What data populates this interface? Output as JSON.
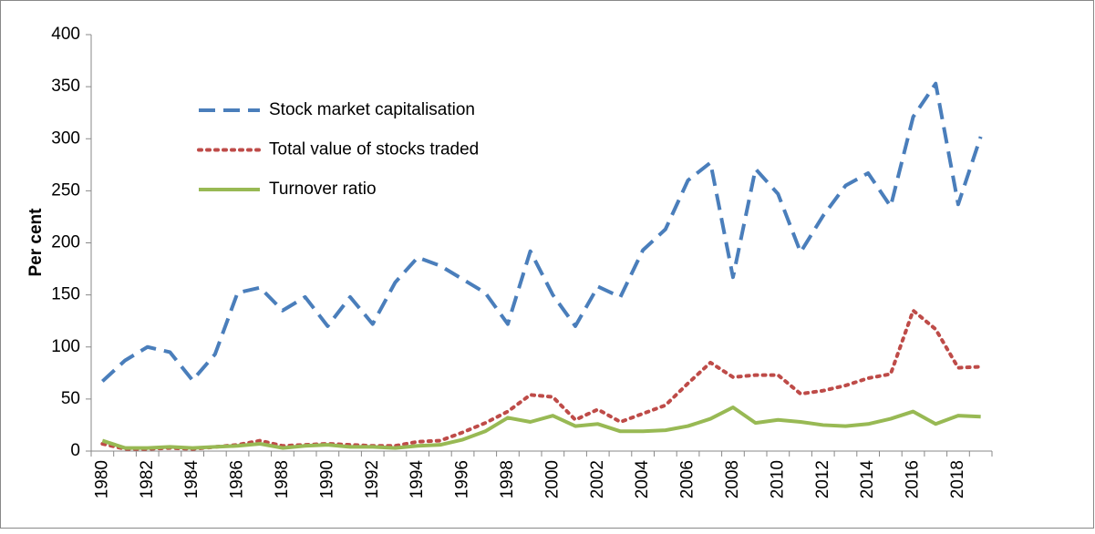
{
  "chart_data": {
    "type": "line",
    "y_label": "Per cent",
    "categories": [
      "1980",
      null,
      "1982",
      null,
      "1984",
      null,
      "1986",
      null,
      "1988",
      null,
      "1990",
      null,
      "1992",
      null,
      "1994",
      null,
      "1996",
      null,
      "1998",
      null,
      "2000",
      null,
      "2002",
      null,
      "2004",
      null,
      "2006",
      null,
      "2008",
      null,
      "2010",
      null,
      "2012",
      null,
      "2014",
      null,
      "2016",
      null,
      "2018",
      null
    ],
    "series": [
      {
        "name": "Stock market capitalisation",
        "color": "#4a7ebb",
        "dash": "dashed",
        "values": [
          67,
          87,
          100,
          95,
          68,
          93,
          152,
          157,
          135,
          148,
          120,
          148,
          122,
          162,
          186,
          178,
          165,
          152,
          122,
          192,
          150,
          120,
          158,
          148,
          193,
          213,
          260,
          277,
          167,
          271,
          247,
          191,
          226,
          255,
          267,
          235,
          321,
          353,
          237,
          302
        ]
      },
      {
        "name": "Total value of stocks traded",
        "color": "#be4b48",
        "dash": "dotted",
        "values": [
          7,
          2,
          2,
          3,
          2,
          4,
          6,
          10,
          5,
          6,
          7,
          6,
          5,
          5,
          9,
          10,
          18,
          27,
          38,
          54,
          52,
          30,
          40,
          28,
          36,
          44,
          65,
          85,
          71,
          73,
          73,
          55,
          58,
          63,
          70,
          74,
          135,
          117,
          80,
          81
        ]
      },
      {
        "name": "Turnover ratio",
        "color": "#98b954",
        "dash": "solid",
        "values": [
          10,
          3,
          3,
          4,
          3,
          4,
          5,
          7,
          3,
          5,
          6,
          4,
          4,
          3,
          5,
          6,
          11,
          19,
          32,
          28,
          34,
          24,
          26,
          19,
          19,
          20,
          24,
          31,
          42,
          27,
          30,
          28,
          25,
          24,
          26,
          31,
          38,
          26,
          34,
          33
        ]
      }
    ],
    "ylim": [
      0,
      400
    ],
    "yticks": [
      0,
      50,
      100,
      150,
      200,
      250,
      300,
      350,
      400
    ],
    "grid": false
  }
}
